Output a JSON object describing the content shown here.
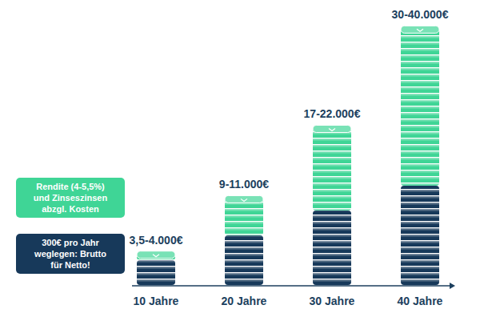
{
  "chart_data": {
    "type": "bar",
    "stacked": true,
    "categories": [
      "10 Jahre",
      "20 Jahre",
      "30 Jahre",
      "40 Jahre"
    ],
    "series": [
      {
        "name": "300€ pro Jahr\nweglegen: Brutto\nfür Netto!",
        "color": "#17395a",
        "values": [
          3000,
          6000,
          9000,
          12000
        ]
      },
      {
        "name": "Rendite (4-5,5%)\nund Zinseszinsen\nabzgl. Kosten",
        "color": "#3fd596",
        "values": [
          800,
          4500,
          10000,
          19000
        ]
      }
    ],
    "annotations": [
      "3,5-4.000€",
      "9-11.000€",
      "17-22.000€",
      "30-40.000€"
    ],
    "ylim": [
      0,
      32000
    ],
    "tick_labels": "x",
    "legend": "left"
  }
}
